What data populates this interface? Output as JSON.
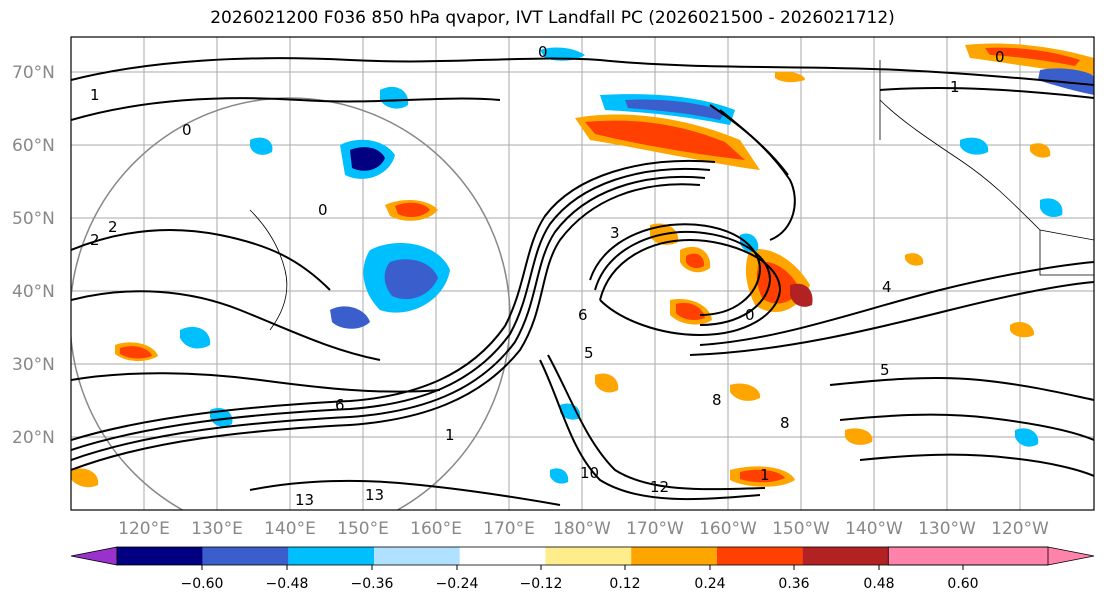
{
  "title": "2026021200 F036 850 hPa qvapor, IVT Landfall PC (2026021500 - 2026021712)",
  "lat_labels": [
    "70°N",
    "60°N",
    "50°N",
    "40°N",
    "30°N",
    "20°N"
  ],
  "lon_labels": [
    "120°E",
    "130°E",
    "140°E",
    "150°E",
    "160°E",
    "170°E",
    "180°W",
    "170°W",
    "160°W",
    "150°W",
    "140°W",
    "130°W",
    "120°W"
  ],
  "contour_labels": [
    "0",
    "0",
    "1",
    "0",
    "0",
    "1",
    "2",
    "0",
    "3",
    "4",
    "6",
    "5",
    "6",
    "8",
    "8",
    "10",
    "12",
    "13",
    "13",
    "1",
    "2",
    "1",
    "5"
  ],
  "colorbar": {
    "colors": [
      "#9932cc",
      "#000080",
      "#3a5fcd",
      "#00bfff",
      "#b0e2ff",
      "#ffffff",
      "#ffec8b",
      "#ffa500",
      "#ff4000",
      "#b22222",
      "#ff82ab"
    ],
    "tick_labels": [
      "−0.60",
      "−0.48",
      "−0.36",
      "−0.24",
      "−0.12",
      "0.12",
      "0.24",
      "0.36",
      "0.48",
      "0.60"
    ]
  }
}
